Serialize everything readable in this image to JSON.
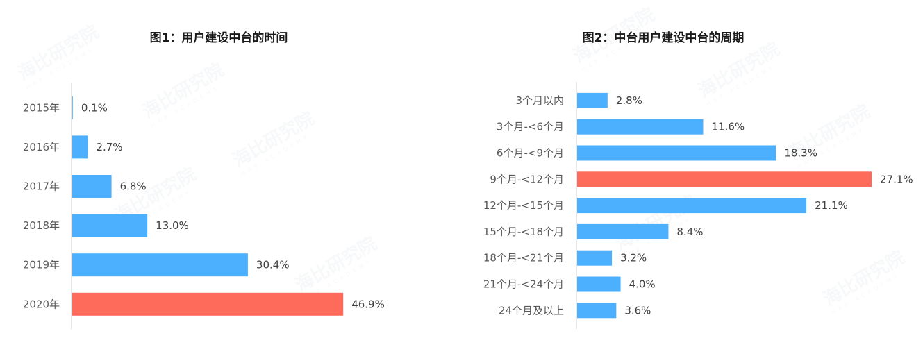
{
  "watermark": {
    "text": "海比研究院",
    "sub": "HAP ACADEMY"
  },
  "chart_data": [
    {
      "type": "bar",
      "orientation": "horizontal",
      "title": "图1：用户建设中台的时间",
      "categories": [
        "2015年",
        "2016年",
        "2017年",
        "2018年",
        "2019年",
        "2020年"
      ],
      "values": [
        0.1,
        2.7,
        6.8,
        13.0,
        30.4,
        46.9
      ],
      "data_labels": [
        "0.1%",
        "2.7%",
        "6.8%",
        "13.0%",
        "30.4%",
        "46.9%"
      ],
      "highlight_index": 5,
      "colors": {
        "bar": "#4DB0FE",
        "highlight": "#FF6B5B"
      },
      "xlim": [
        0,
        50
      ],
      "grid": false
    },
    {
      "type": "bar",
      "orientation": "horizontal",
      "title": "图2：中台用户建设中台的周期",
      "categories": [
        "3个月以内",
        "3个月-<6个月",
        "6个月-<9个月",
        "9个月-<12个月",
        "12个月-<15个月",
        "15个月-<18个月",
        "18个月-<21个月",
        "21个月-<24个月",
        "24个月及以上"
      ],
      "values": [
        2.8,
        11.6,
        18.3,
        27.1,
        21.1,
        8.4,
        3.2,
        4.0,
        3.6
      ],
      "data_labels": [
        "2.8%",
        "11.6%",
        "18.3%",
        "27.1%",
        "21.1%",
        "8.4%",
        "3.2%",
        "4.0%",
        "3.6%"
      ],
      "highlight_index": 3,
      "colors": {
        "bar": "#4DB0FE",
        "highlight": "#FF6B5B"
      },
      "xlim": [
        0,
        27.1
      ],
      "grid": false
    }
  ]
}
